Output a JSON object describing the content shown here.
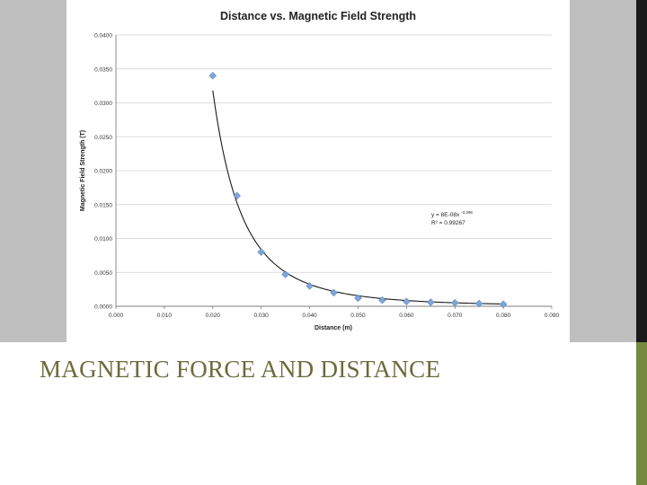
{
  "slide": {
    "title": "MAGNETIC FORCE AND DISTANCE"
  },
  "chart_data": {
    "type": "scatter",
    "title": "Distance vs. Magnetic Field Strength",
    "xlabel": "Distance (m)",
    "ylabel": "Magnetic Field Strength (T)",
    "xlim": [
      0.0,
      0.09
    ],
    "ylim": [
      0.0,
      0.04
    ],
    "x_ticks": [
      "0.000",
      "0.010",
      "0.020",
      "0.030",
      "0.040",
      "0.050",
      "0.060",
      "0.070",
      "0.080",
      "0.090"
    ],
    "y_ticks": [
      "0.0000",
      "0.0050",
      "0.0100",
      "0.0150",
      "0.0200",
      "0.0250",
      "0.0300",
      "0.0350",
      "0.0400"
    ],
    "grid": true,
    "points": {
      "x": [
        0.02,
        0.025,
        0.03,
        0.035,
        0.04,
        0.045,
        0.05,
        0.055,
        0.06,
        0.065,
        0.07,
        0.075,
        0.08
      ],
      "y": [
        0.034,
        0.0163,
        0.008,
        0.0047,
        0.003,
        0.002,
        0.0012,
        0.0009,
        0.0007,
        0.0006,
        0.0005,
        0.0004,
        0.0003
      ]
    },
    "trendline": {
      "type": "power",
      "a": 8e-08,
      "b": -3.296,
      "x_range": [
        0.02,
        0.08
      ],
      "equation_base": "y = 8E-08x",
      "equation_exp": "-3.296",
      "r2_label": "R² = 0.99267"
    },
    "colors": {
      "marker": "#7ea6d8",
      "marker_stroke": "#5a86c0",
      "trendline": "#1a1a1a",
      "grid": "#d0d0d0",
      "axis": "#7f7f7f"
    }
  }
}
